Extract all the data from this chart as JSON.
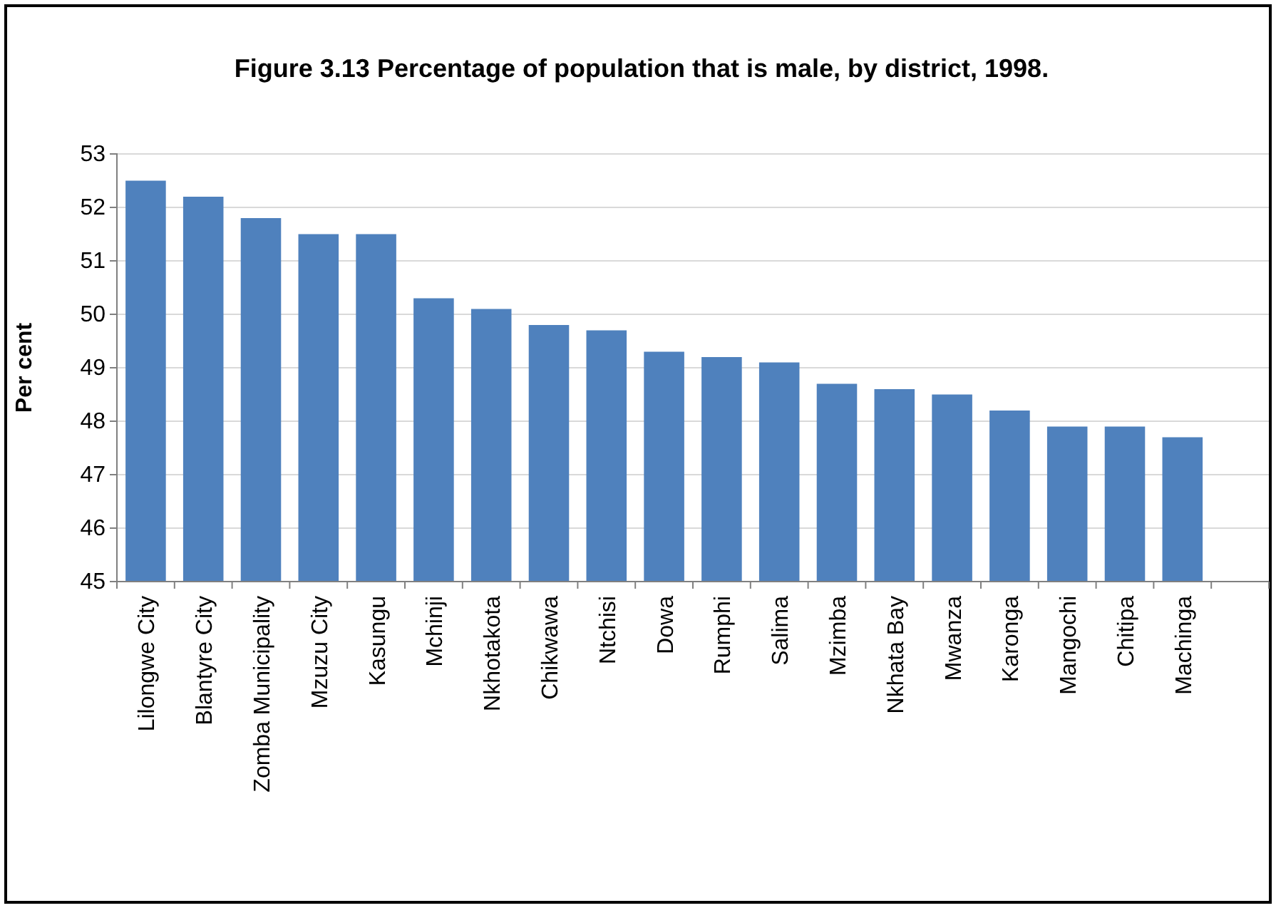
{
  "chart_data": {
    "type": "bar",
    "title": "Figure 3.13    Percentage of population that is male, by district, 1998.",
    "ylabel": "Per cent",
    "categories": [
      "Lilongwe City",
      "Blantyre City",
      "Zomba Municipality",
      "Mzuzu City",
      "Kasungu",
      "Mchinji",
      "Nkhotakota",
      "Chikwawa",
      "Ntchisi",
      "Dowa",
      "Rumphi",
      "Salima",
      "Mzimba",
      "Nkhata Bay",
      "Mwanza",
      "Karonga",
      "Mangochi",
      "Chitipa",
      "Machinga",
      null
    ],
    "values": [
      52.5,
      52.2,
      51.8,
      51.5,
      51.5,
      50.3,
      50.1,
      49.8,
      49.7,
      49.3,
      49.2,
      49.1,
      48.7,
      48.6,
      48.5,
      48.2,
      47.9,
      47.9,
      47.7,
      null
    ],
    "color": "#4f81bd",
    "ylim": [
      45,
      53
    ],
    "yticks": [
      45,
      46,
      47,
      48,
      49,
      50,
      51,
      52,
      53
    ],
    "grid": "y"
  }
}
